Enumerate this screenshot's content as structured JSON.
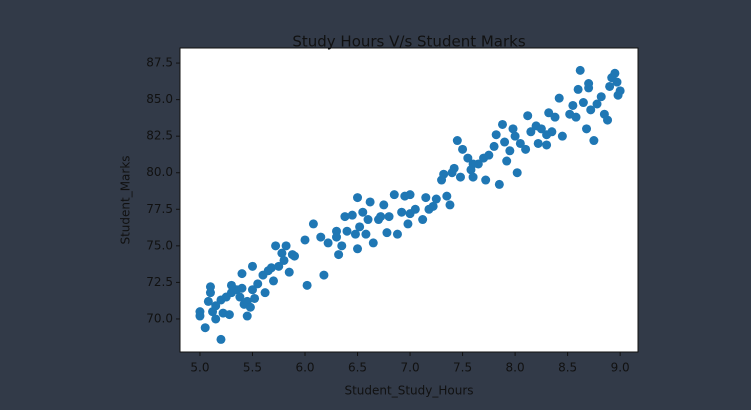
{
  "chart_data": {
    "type": "scatter",
    "title": "Study Hours V/s Student Marks",
    "x_label": "Student_Study_Hours",
    "y_label": "Student_Marks",
    "color": "#1f77b4",
    "xlim": [
      4.81,
      9.17
    ],
    "ylim": [
      67.74,
      88.53
    ],
    "xticks": [
      {
        "value": 5,
        "label": "5.0"
      },
      5.5,
      {
        "value": 6,
        "label": "6.0"
      },
      6.5,
      {
        "value": 7,
        "label": "7.0"
      },
      7.5,
      {
        "value": 8,
        "label": "8.0"
      },
      8.5,
      {
        "value": 9,
        "label": "9.0"
      }
    ],
    "yticks": [
      {
        "value": 70,
        "label": "70.0"
      },
      72.5,
      {
        "value": 75,
        "label": "75.0"
      },
      77.5,
      {
        "value": 80,
        "label": "80.0"
      },
      82.5,
      {
        "value": 85,
        "label": "85.0"
      },
      87.5
    ],
    "x": [
      5.0,
      5.0,
      5.05,
      5.08,
      5.1,
      5.1,
      5.12,
      5.15,
      5.2,
      5.2,
      5.22,
      5.25,
      5.28,
      5.3,
      5.35,
      5.38,
      5.4,
      5.4,
      5.42,
      5.45,
      5.45,
      5.48,
      5.5,
      5.5,
      5.52,
      5.55,
      5.6,
      5.62,
      5.65,
      5.68,
      5.7,
      5.72,
      5.75,
      5.78,
      5.8,
      5.82,
      5.85,
      5.88,
      5.9,
      6.0,
      6.02,
      6.08,
      6.15,
      6.18,
      6.22,
      6.3,
      6.32,
      6.35,
      6.38,
      6.4,
      6.45,
      6.48,
      6.5,
      6.5,
      6.52,
      6.55,
      6.58,
      6.6,
      6.62,
      6.65,
      6.7,
      6.72,
      6.75,
      6.78,
      6.8,
      6.85,
      6.88,
      6.92,
      6.95,
      6.98,
      7.0,
      7.05,
      7.12,
      7.15,
      7.18,
      7.22,
      7.25,
      7.3,
      7.32,
      7.35,
      7.38,
      7.4,
      7.42,
      7.45,
      7.48,
      7.5,
      7.55,
      7.58,
      7.6,
      7.65,
      7.7,
      7.72,
      7.75,
      7.8,
      7.82,
      7.85,
      7.88,
      7.9,
      7.92,
      7.95,
      7.98,
      8.0,
      8.02,
      8.05,
      8.1,
      8.12,
      8.15,
      8.2,
      8.22,
      8.25,
      8.3,
      8.32,
      8.35,
      8.38,
      8.42,
      8.45,
      8.52,
      8.55,
      8.58,
      8.62,
      8.65,
      8.68,
      8.7,
      8.72,
      8.75,
      8.78,
      8.82,
      8.85,
      8.88,
      8.9,
      8.92,
      8.95,
      8.97,
      9.0,
      8.98,
      8.6,
      8.7,
      7.0,
      6.3,
      5.3,
      5.15,
      7.6,
      8.3
    ],
    "values": [
      70.5,
      70.2,
      69.4,
      71.2,
      72.2,
      71.8,
      70.5,
      70.9,
      71.3,
      68.6,
      70.4,
      71.5,
      70.3,
      71.8,
      72.0,
      71.5,
      73.1,
      72.1,
      71.0,
      70.2,
      71.2,
      70.8,
      73.6,
      72.0,
      71.4,
      72.4,
      73.0,
      71.8,
      73.3,
      73.5,
      72.6,
      75.0,
      73.6,
      74.5,
      74.0,
      75.0,
      73.2,
      74.4,
      74.3,
      75.4,
      72.3,
      76.5,
      75.6,
      73.0,
      75.2,
      76.0,
      74.4,
      75.0,
      77.0,
      76.0,
      77.1,
      75.8,
      78.3,
      74.8,
      76.3,
      77.3,
      75.8,
      76.8,
      78.0,
      75.2,
      76.8,
      77.0,
      77.8,
      75.9,
      77.0,
      78.5,
      75.8,
      77.3,
      78.4,
      76.5,
      77.2,
      77.5,
      76.8,
      78.3,
      77.5,
      77.7,
      78.2,
      79.5,
      79.9,
      78.4,
      77.8,
      80.0,
      80.3,
      82.2,
      79.7,
      81.6,
      81.0,
      80.2,
      79.7,
      80.6,
      81.0,
      79.5,
      81.2,
      81.8,
      82.6,
      79.2,
      83.3,
      82.1,
      80.8,
      81.5,
      83.0,
      82.5,
      80.0,
      82.0,
      81.6,
      83.9,
      82.8,
      83.2,
      82.0,
      83.0,
      81.9,
      84.1,
      82.8,
      83.8,
      85.1,
      82.5,
      84.0,
      84.6,
      83.8,
      87.0,
      84.8,
      83.0,
      85.8,
      84.3,
      82.2,
      84.7,
      85.2,
      84.0,
      83.6,
      85.9,
      86.5,
      86.8,
      86.2,
      85.6,
      85.3,
      85.7,
      86.1,
      78.5,
      75.6,
      72.3,
      70.0,
      80.6,
      82.6
    ]
  }
}
